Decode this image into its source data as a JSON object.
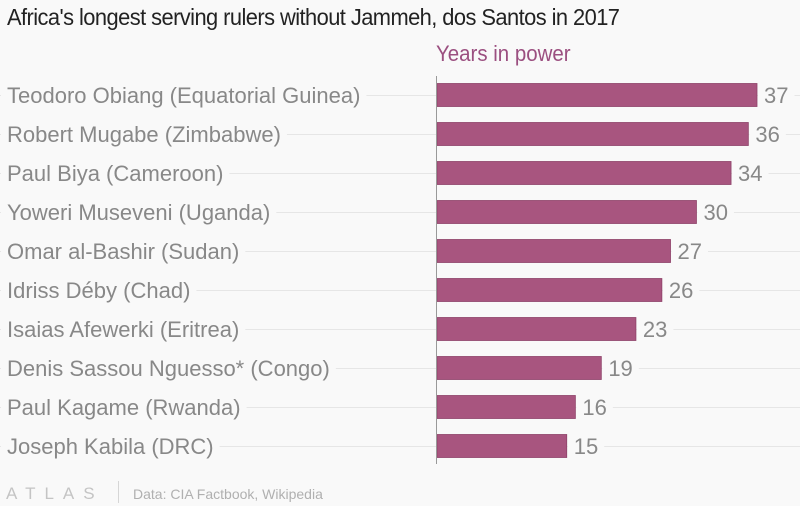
{
  "chart_data": {
    "type": "bar",
    "orientation": "horizontal",
    "title": "Africa's longest serving rulers without Jammeh, dos Santos in 2017",
    "series_name": "Years in power",
    "categories": [
      "Teodoro Obiang (Equatorial Guinea)",
      "Robert Mugabe (Zimbabwe)",
      "Paul Biya (Cameroon)",
      "Yoweri Museveni (Uganda)",
      "Omar al-Bashir (Sudan)",
      "Idriss Déby (Chad)",
      "Isaias Afewerki (Eritrea)",
      "Denis Sassou Nguesso* (Congo)",
      "Paul Kagame (Rwanda)",
      "Joseph Kabila (DRC)"
    ],
    "values": [
      37,
      36,
      34,
      30,
      27,
      26,
      23,
      19,
      16,
      15
    ],
    "xlim": [
      0,
      37
    ],
    "grid": false,
    "legend": "top",
    "bar_color": "#a8557f",
    "label_color": "#9b4f80"
  },
  "footer": {
    "logo": "ATLAS",
    "source": "Data: CIA Factbook, Wikipedia"
  }
}
